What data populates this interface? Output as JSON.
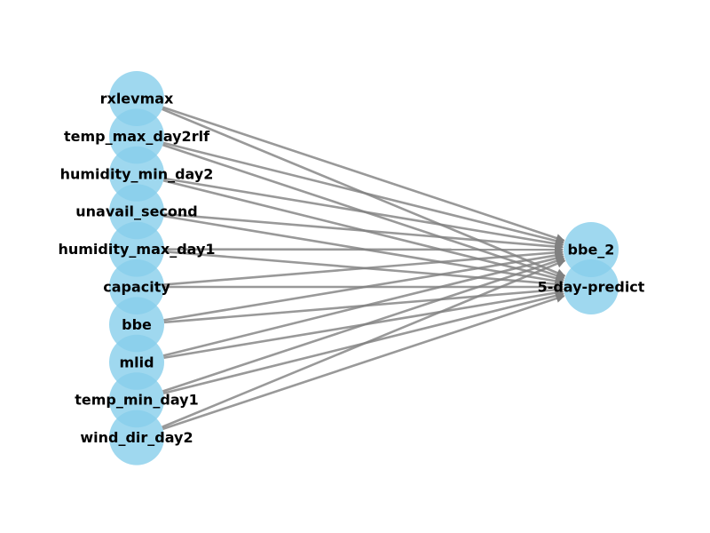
{
  "colors": {
    "node_fill": "#87ceeb",
    "node_opacity": 0.8,
    "edge": "#808080",
    "edge_opacity": 0.8
  },
  "source_nodes": [
    {
      "label": "rxlevmax"
    },
    {
      "label": "temp_max_day2rlf"
    },
    {
      "label": "humidity_min_day2"
    },
    {
      "label": "unavail_second"
    },
    {
      "label": "humidity_max_day1"
    },
    {
      "label": "capacity"
    },
    {
      "label": "bbe"
    },
    {
      "label": "mlid"
    },
    {
      "label": "temp_min_day1"
    },
    {
      "label": "wind_dir_day2"
    }
  ],
  "target_nodes": [
    {
      "label": "bbe_2"
    },
    {
      "label": "5-day-predict"
    }
  ],
  "edges": "every source node connects to every target node"
}
